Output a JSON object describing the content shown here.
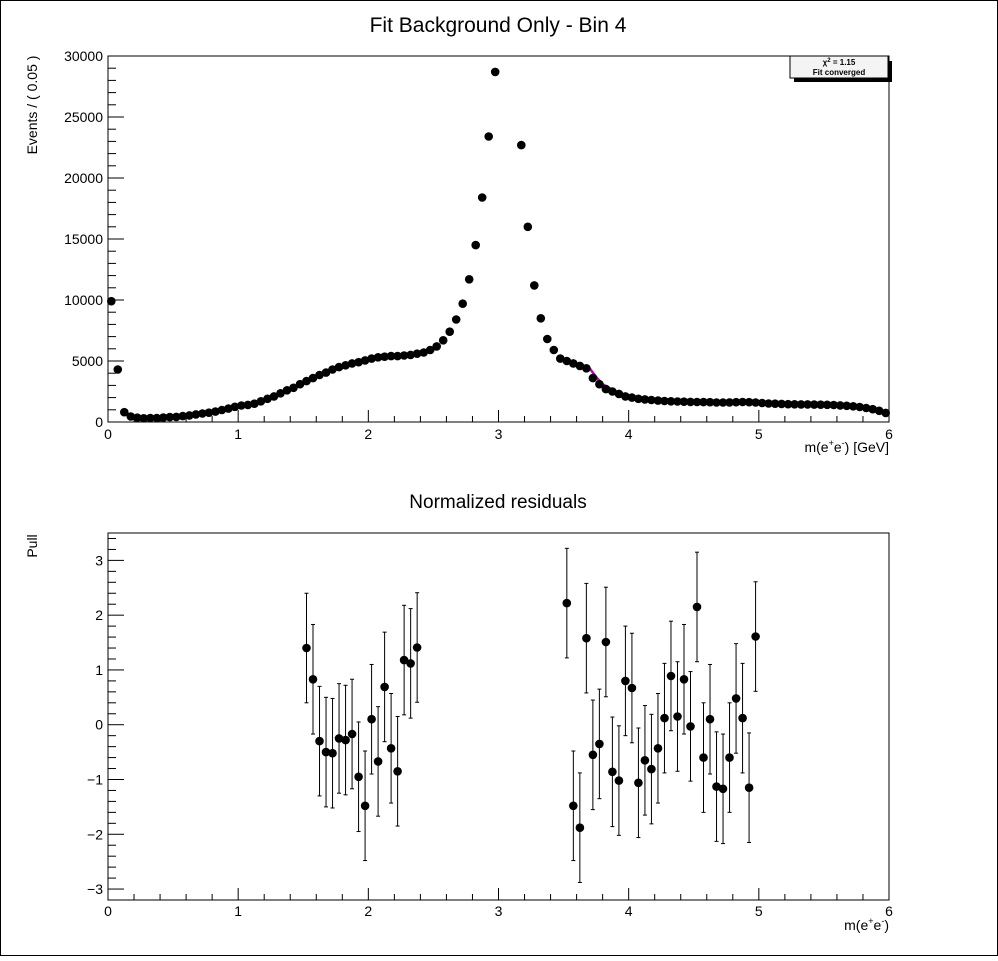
{
  "chart_data": [
    {
      "type": "scatter",
      "title": "Fit Background Only - Bin 4",
      "xlabel_main": "m(e",
      "xlabel_sup1": "+",
      "xlabel_mid": "e",
      "xlabel_sup2": "-",
      "xlabel_tail": ") [GeV]",
      "ylabel": "Events / ( 0.05 )",
      "xlim": [
        0,
        6
      ],
      "ylim": [
        0,
        30000
      ],
      "xticks": [
        "0",
        "1",
        "2",
        "3",
        "4",
        "5",
        "6"
      ],
      "yticks": [
        "0",
        "5000",
        "10000",
        "15000",
        "20000",
        "25000",
        "30000"
      ],
      "stats_box": {
        "line1_chi": "χ",
        "line1_sup": "2",
        "line1_rest": " = 1.15",
        "line2": "Fit converged"
      },
      "series": [
        {
          "marker": "filled-circle",
          "x": [
            0.025,
            0.075,
            0.125,
            0.175,
            0.225,
            0.275,
            0.325,
            0.375,
            0.425,
            0.475,
            0.525,
            0.575,
            0.625,
            0.675,
            0.725,
            0.775,
            0.825,
            0.875,
            0.925,
            0.975,
            1.025,
            1.075,
            1.125,
            1.175,
            1.225,
            1.275,
            1.325,
            1.375,
            1.425,
            1.475,
            1.525,
            1.575,
            1.625,
            1.675,
            1.725,
            1.775,
            1.825,
            1.875,
            1.925,
            1.975,
            2.025,
            2.075,
            2.125,
            2.175,
            2.225,
            2.275,
            2.325,
            2.375,
            2.425,
            2.475,
            2.525,
            2.575,
            2.625,
            2.675,
            2.725,
            2.775,
            2.825,
            2.875,
            2.925,
            2.975,
            3.175,
            3.225,
            3.275,
            3.325,
            3.375,
            3.425,
            3.475,
            3.525,
            3.575,
            3.625,
            3.675,
            3.725,
            3.775,
            3.825,
            3.875,
            3.925,
            3.975,
            4.025,
            4.075,
            4.125,
            4.175,
            4.225,
            4.275,
            4.325,
            4.375,
            4.425,
            4.475,
            4.525,
            4.575,
            4.625,
            4.675,
            4.725,
            4.775,
            4.825,
            4.875,
            4.925,
            4.975,
            5.025,
            5.075,
            5.125,
            5.175,
            5.225,
            5.275,
            5.325,
            5.375,
            5.425,
            5.475,
            5.525,
            5.575,
            5.625,
            5.675,
            5.725,
            5.775,
            5.825,
            5.875,
            5.925,
            5.975
          ],
          "y": [
            9900,
            4300,
            800,
            450,
            350,
            300,
            330,
            330,
            360,
            400,
            420,
            480,
            540,
            620,
            700,
            760,
            850,
            980,
            1100,
            1250,
            1350,
            1400,
            1500,
            1700,
            1900,
            2100,
            2350,
            2600,
            2800,
            3100,
            3350,
            3600,
            3850,
            4050,
            4300,
            4500,
            4650,
            4800,
            4900,
            5050,
            5200,
            5300,
            5350,
            5400,
            5400,
            5450,
            5500,
            5600,
            5700,
            5900,
            6200,
            6700,
            7400,
            8400,
            9700,
            11700,
            14500,
            18400,
            23400,
            28700,
            22700,
            16000,
            11200,
            8500,
            6800,
            5900,
            5200,
            5000,
            4800,
            4600,
            4400,
            3600,
            3100,
            2700,
            2500,
            2300,
            2100,
            2000,
            1900,
            1850,
            1800,
            1750,
            1720,
            1700,
            1680,
            1660,
            1650,
            1640,
            1630,
            1620,
            1600,
            1600,
            1610,
            1620,
            1640,
            1620,
            1600,
            1560,
            1520,
            1500,
            1480,
            1460,
            1450,
            1440,
            1440,
            1430,
            1420,
            1410,
            1390,
            1360,
            1330,
            1290,
            1230,
            1150,
            1050,
            920,
            750
          ]
        }
      ],
      "fit_segments": [
        {
          "x": [
            1.5,
            1.6,
            1.7,
            1.8,
            1.9,
            2.0,
            2.1,
            2.2,
            2.3,
            2.4
          ],
          "y": [
            3350,
            3800,
            4150,
            4450,
            4750,
            5050,
            5250,
            5450,
            5550,
            5600
          ]
        },
        {
          "x": [
            3.5,
            3.6,
            3.65,
            3.7,
            3.75,
            3.8,
            3.9,
            4.0,
            4.2,
            4.4,
            4.6,
            4.8,
            5.0
          ],
          "y": [
            4950,
            4700,
            4600,
            4400,
            3700,
            3100,
            2500,
            2100,
            1850,
            1700,
            1630,
            1610,
            1590
          ]
        }
      ]
    },
    {
      "type": "scatter",
      "title": "Normalized residuals",
      "xlabel_main": "m(e",
      "xlabel_sup1": "+",
      "xlabel_mid": "e",
      "xlabel_sup2": "-",
      "xlabel_tail": ")",
      "ylabel": "Pull",
      "xlim": [
        0,
        6
      ],
      "ylim": [
        -3.2,
        3.5
      ],
      "xticks": [
        "0",
        "1",
        "2",
        "3",
        "4",
        "5",
        "6"
      ],
      "yticks": [
        "−3",
        "−2",
        "−1",
        "0",
        "1",
        "2",
        "3"
      ],
      "ytick_values": [
        -3,
        -2,
        -1,
        0,
        1,
        2,
        3
      ],
      "series": [
        {
          "marker": "filled-circle-with-errorbar",
          "error": 1,
          "x": [
            1.525,
            1.575,
            1.625,
            1.675,
            1.725,
            1.775,
            1.825,
            1.875,
            1.925,
            1.975,
            2.025,
            2.075,
            2.125,
            2.175,
            2.225,
            2.275,
            2.325,
            2.375,
            3.525,
            3.575,
            3.625,
            3.675,
            3.725,
            3.775,
            3.825,
            3.875,
            3.925,
            3.975,
            4.025,
            4.075,
            4.125,
            4.175,
            4.225,
            4.275,
            4.325,
            4.375,
            4.425,
            4.475,
            4.525,
            4.575,
            4.625,
            4.675,
            4.725,
            4.775,
            4.825,
            4.875,
            4.925,
            4.975
          ],
          "y": [
            1.4,
            0.83,
            -0.3,
            -0.5,
            -0.52,
            -0.25,
            -0.28,
            -0.17,
            -0.95,
            -1.48,
            0.1,
            -0.67,
            0.69,
            -0.43,
            -0.85,
            1.18,
            1.12,
            1.41,
            2.22,
            -1.48,
            -1.88,
            1.58,
            -0.55,
            -0.35,
            1.51,
            -0.86,
            -1.02,
            0.8,
            0.67,
            -1.06,
            -0.65,
            -0.81,
            -0.43,
            0.12,
            0.89,
            0.15,
            0.83,
            -0.03,
            2.15,
            -0.6,
            0.1,
            -1.13,
            -1.17,
            -0.6,
            0.48,
            0.12,
            -1.15,
            1.61
          ]
        }
      ]
    }
  ]
}
